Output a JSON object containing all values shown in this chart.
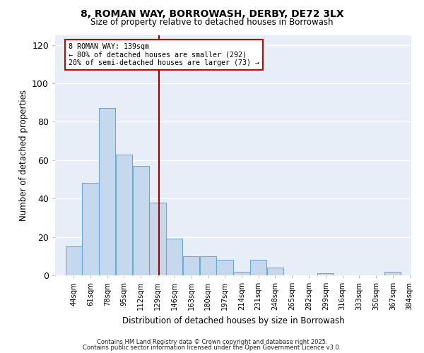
{
  "title": "8, ROMAN WAY, BORROWASH, DERBY, DE72 3LX",
  "subtitle": "Size of property relative to detached houses in Borrowash",
  "xlabel": "Distribution of detached houses by size in Borrowash",
  "ylabel": "Number of detached properties",
  "bar_color": "#c5d8ee",
  "bar_edge_color": "#6aaad4",
  "background_color": "#e8eef8",
  "grid_color": "#ffffff",
  "property_value_bin": 8,
  "property_line_color": "#990000",
  "annotation_text": "8 ROMAN WAY: 139sqm\n← 80% of detached houses are smaller (292)\n20% of semi-detached houses are larger (73) →",
  "annotation_box_edge": "#cc0000",
  "categories": [
    "44sqm",
    "61sqm",
    "78sqm",
    "95sqm",
    "112sqm",
    "129sqm",
    "146sqm",
    "163sqm",
    "180sqm",
    "197sqm",
    "214sqm",
    "231sqm",
    "248sqm",
    "265sqm",
    "282sqm",
    "299sqm",
    "316sqm",
    "333sqm",
    "350sqm",
    "367sqm",
    "384sqm"
  ],
  "bin_edges": [
    44,
    61,
    78,
    95,
    112,
    129,
    146,
    163,
    180,
    197,
    214,
    231,
    248,
    265,
    282,
    299,
    316,
    333,
    350,
    367,
    384,
    401
  ],
  "counts": [
    15,
    48,
    87,
    63,
    57,
    38,
    19,
    10,
    10,
    8,
    2,
    8,
    4,
    0,
    0,
    1,
    0,
    0,
    0,
    2,
    0
  ],
  "ylim": [
    0,
    125
  ],
  "yticks": [
    0,
    20,
    40,
    60,
    80,
    100,
    120
  ],
  "footer_line1": "Contains HM Land Registry data © Crown copyright and database right 2025.",
  "footer_line2": "Contains public sector information licensed under the Open Government Licence v3.0."
}
